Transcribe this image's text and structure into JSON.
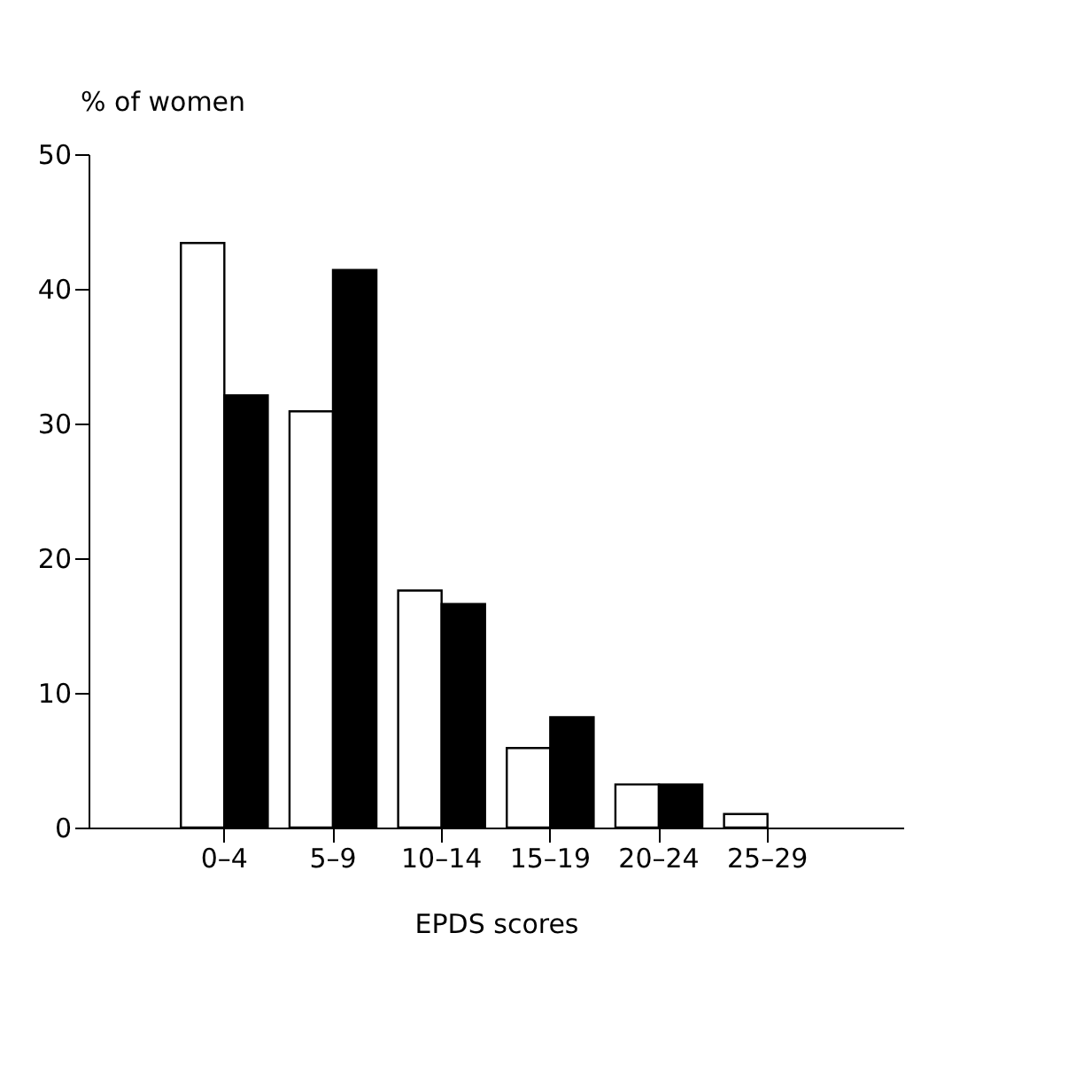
{
  "chart_data": {
    "type": "bar",
    "xlabel": "EPDS scores",
    "ylabel": "% of women",
    "categories": [
      "0–4",
      "5–9",
      "10–14",
      "15–19",
      "20–24",
      "25–29"
    ],
    "series": [
      {
        "color": "#ffffff",
        "values": [
          43.4,
          30.9,
          17.6,
          5.9,
          3.2,
          1.0
        ]
      },
      {
        "color": "#000000",
        "values": [
          32.1,
          41.4,
          16.6,
          8.2,
          3.2,
          null
        ]
      }
    ],
    "ylim": [
      0,
      50
    ],
    "yticks": [
      0,
      10,
      20,
      30,
      40,
      50
    ],
    "grid": false,
    "legend": false
  }
}
